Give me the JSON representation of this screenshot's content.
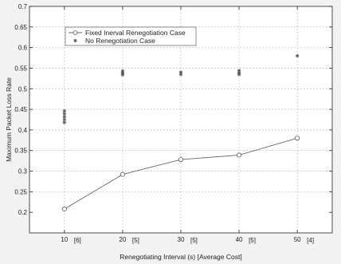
{
  "chart_data": {
    "type": "line",
    "title": "",
    "xlabel": "Renegotiating Interval (s) [Average Cost]",
    "ylabel": "Maximum Packet Loss Rate",
    "xlim": [
      4,
      56
    ],
    "ylim": [
      0.15,
      0.7
    ],
    "grid": true,
    "legend_position": "top-left",
    "x": [
      10,
      20,
      30,
      40,
      50
    ],
    "x_tick_labels": [
      "10",
      "20",
      "30",
      "40",
      "50"
    ],
    "x_tick_suffixes": [
      "[6]",
      "[5]",
      "[5]",
      "[5]",
      "[4]"
    ],
    "y_ticks": [
      "0.2",
      "0.25",
      "0.3",
      "0.35",
      "0.4",
      "0.45",
      "0.5",
      "0.55",
      "0.6",
      "0.65",
      "0.7"
    ],
    "series": [
      {
        "name": "Fixed Inerval Renegotiation Case",
        "marker": "circle",
        "style": "line",
        "values": [
          0.208,
          0.292,
          0.328,
          0.339,
          0.38
        ]
      },
      {
        "name": "No Renegotiation Case",
        "marker": "star",
        "style": "points",
        "points": [
          [
            10,
            0.418
          ],
          [
            10,
            0.425
          ],
          [
            10,
            0.432
          ],
          [
            10,
            0.439
          ],
          [
            10,
            0.446
          ],
          [
            20,
            0.534
          ],
          [
            20,
            0.538
          ],
          [
            20,
            0.543
          ],
          [
            30,
            0.535
          ],
          [
            30,
            0.54
          ],
          [
            40,
            0.535
          ],
          [
            40,
            0.539
          ],
          [
            40,
            0.544
          ],
          [
            50,
            0.58
          ]
        ]
      }
    ]
  }
}
